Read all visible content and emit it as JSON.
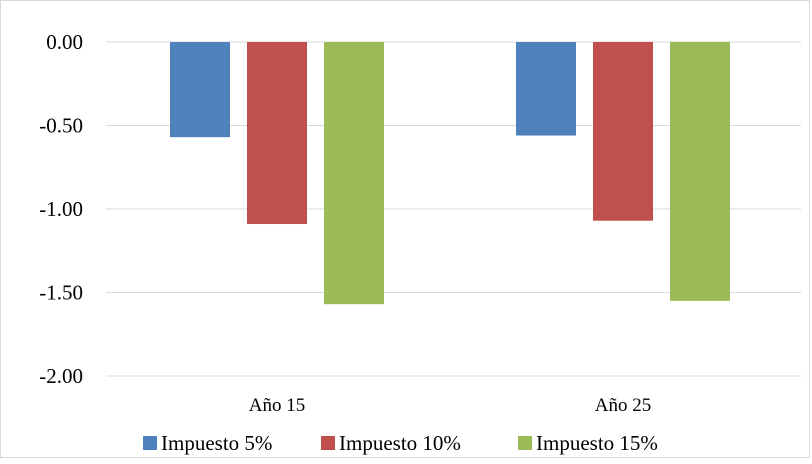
{
  "chart_data": {
    "type": "bar",
    "categories": [
      "Año 15",
      "Año 25"
    ],
    "series": [
      {
        "name": "Impuesto 5%",
        "color": "#4f81bd",
        "values": [
          -0.57,
          -0.56
        ]
      },
      {
        "name": "Impuesto 10%",
        "color": "#c0504d",
        "values": [
          -1.09,
          -1.07
        ]
      },
      {
        "name": "Impuesto 15%",
        "color": "#9bbb59",
        "values": [
          -1.57,
          -1.55
        ]
      }
    ],
    "y_ticks": [
      "0.00",
      "-0.50",
      "-1.00",
      "-1.50",
      "-2.00"
    ],
    "ylim": [
      -2.0,
      0.0
    ],
    "grid": true,
    "legend_position": "bottom",
    "title": "",
    "xlabel": "",
    "ylabel": ""
  }
}
